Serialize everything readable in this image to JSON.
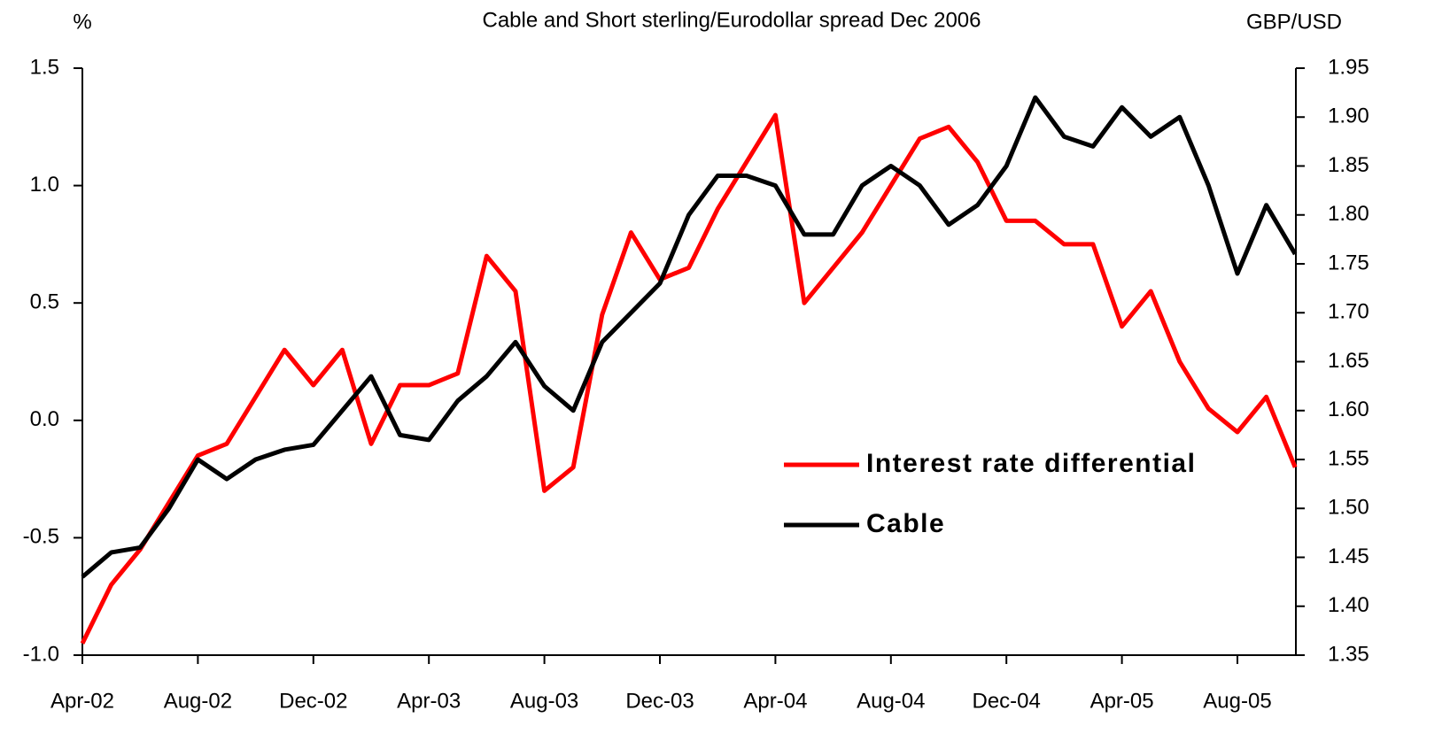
{
  "chart_data": {
    "type": "line",
    "title": "Cable and Short sterling/Eurodollar spread Dec 2006",
    "y_label": "%",
    "y2_label": "GBP/USD",
    "categories": [
      "Apr-02",
      null,
      null,
      null,
      "Aug-02",
      null,
      null,
      null,
      "Dec-02",
      null,
      null,
      null,
      "Apr-03",
      null,
      null,
      null,
      "Aug-03",
      null,
      null,
      null,
      "Dec-03",
      null,
      null,
      null,
      "Apr-04",
      null,
      null,
      null,
      "Aug-04",
      null,
      null,
      null,
      "Dec-04",
      null,
      null,
      null,
      "Apr-05",
      null,
      null,
      null,
      "Aug-05",
      null,
      null
    ],
    "series": [
      {
        "name": "Interest rate differential",
        "color": "#ff0000",
        "axis": "y",
        "values": [
          -0.95,
          -0.7,
          -0.55,
          -0.35,
          -0.15,
          -0.1,
          0.1,
          0.3,
          0.15,
          0.3,
          -0.1,
          0.15,
          0.15,
          0.2,
          0.7,
          0.55,
          -0.3,
          -0.2,
          0.45,
          0.8,
          0.6,
          0.65,
          0.9,
          1.1,
          1.3,
          0.5,
          0.65,
          0.8,
          1.0,
          1.2,
          1.25,
          1.1,
          0.85,
          0.85,
          0.75,
          0.75,
          0.4,
          0.55,
          0.25,
          0.05,
          -0.05,
          0.1,
          -0.2
        ]
      },
      {
        "name": "Cable",
        "color": "#000000",
        "axis": "y2",
        "values": [
          1.43,
          1.455,
          1.46,
          1.5,
          1.55,
          1.53,
          1.55,
          1.56,
          1.565,
          1.6,
          1.635,
          1.575,
          1.57,
          1.61,
          1.635,
          1.67,
          1.625,
          1.6,
          1.67,
          1.7,
          1.73,
          1.8,
          1.84,
          1.84,
          1.83,
          1.78,
          1.78,
          1.83,
          1.85,
          1.83,
          1.79,
          1.81,
          1.85,
          1.92,
          1.88,
          1.87,
          1.91,
          1.88,
          1.9,
          1.83,
          1.74,
          1.81,
          1.76
        ]
      }
    ],
    "ylim": [
      -1.0,
      1.5
    ],
    "yticks": [
      {
        "value": -1.0,
        "label": "-1.0"
      },
      -0.5,
      {
        "value": 0.0,
        "label": "0.0"
      },
      0.5,
      {
        "value": 1.0,
        "label": "1.0"
      },
      1.5
    ],
    "y2lim": [
      1.35,
      1.95
    ],
    "y2ticks": [
      1.35,
      {
        "value": 1.4,
        "label": "1.40"
      },
      1.45,
      {
        "value": 1.5,
        "label": "1.50"
      },
      1.55,
      {
        "value": 1.6,
        "label": "1.60"
      },
      1.65,
      {
        "value": 1.7,
        "label": "1.70"
      },
      1.75,
      {
        "value": 1.8,
        "label": "1.80"
      },
      1.85,
      {
        "value": 1.9,
        "label": "1.90"
      },
      1.95
    ],
    "grid": false
  }
}
